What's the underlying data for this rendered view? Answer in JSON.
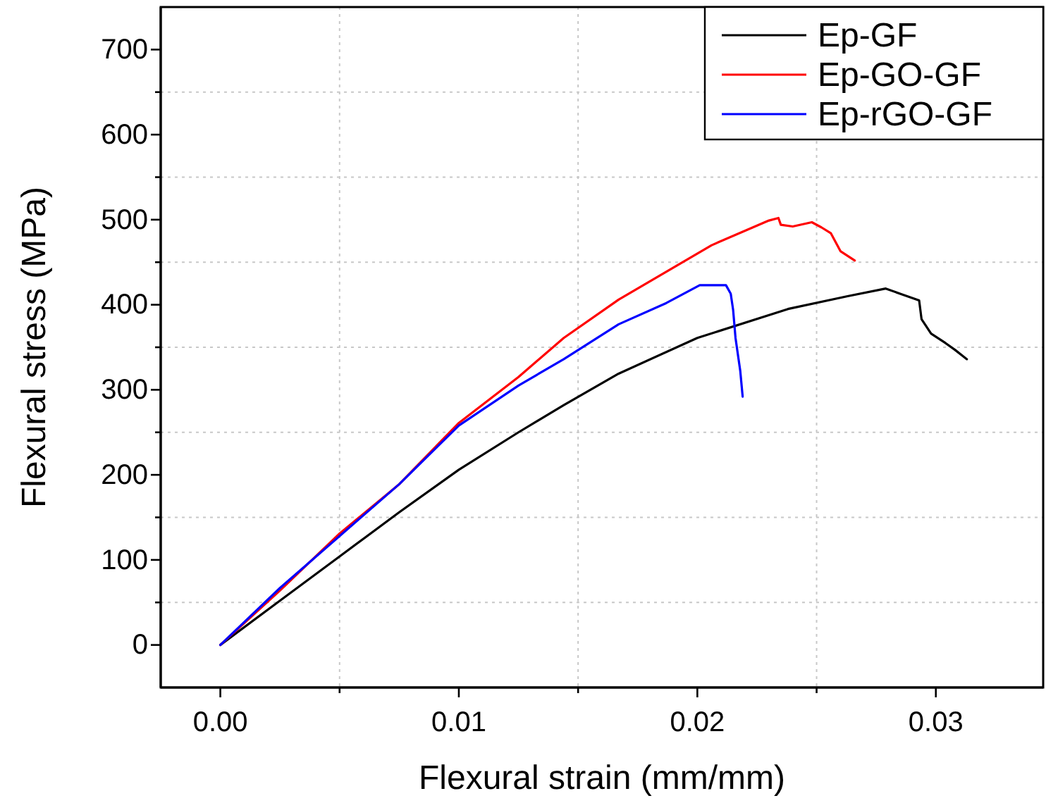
{
  "chart_data": {
    "type": "line",
    "xlabel": "Flexural strain (mm/mm)",
    "ylabel": "Flexural stress (MPa)",
    "xlim": [
      -0.0025,
      0.0345
    ],
    "ylim": [
      -50,
      750
    ],
    "xticks": [
      {
        "value": 0,
        "label": "0.00"
      },
      {
        "value": 0.005,
        "label": null
      },
      {
        "value": 0.01,
        "label": "0.01"
      },
      {
        "value": 0.015,
        "label": null
      },
      {
        "value": 0.02,
        "label": "0.02"
      },
      {
        "value": 0.025,
        "label": null
      },
      {
        "value": 0.03,
        "label": "0.03"
      }
    ],
    "yticks": [
      0,
      {
        "value": 50,
        "label": null
      },
      100,
      {
        "value": 150,
        "label": null
      },
      200,
      {
        "value": 250,
        "label": null
      },
      300,
      {
        "value": 350,
        "label": null
      },
      400,
      {
        "value": 450,
        "label": null
      },
      500,
      {
        "value": 550,
        "label": null
      },
      600,
      {
        "value": 650,
        "label": null
      },
      700
    ],
    "grid": true,
    "legend": "top right",
    "line_style": "solid",
    "marker": "none",
    "series": [
      {
        "name": "Ep-GF",
        "color": "#000000",
        "x": [
          0,
          0.0025,
          0.005,
          0.0075,
          0.01,
          0.0125,
          0.0144,
          0.0167,
          0.02,
          0.0238,
          0.0263,
          0.0279,
          0.0285,
          0.0293,
          0.0294,
          0.0298,
          0.0304,
          0.0308,
          0.0313
        ],
        "values": [
          0,
          52,
          104,
          156,
          206,
          250,
          282,
          319,
          361,
          395,
          410,
          419,
          413,
          405,
          383,
          366,
          355,
          347,
          336
        ]
      },
      {
        "name": "Ep-GO-GF",
        "color": "#ff0000",
        "x": [
          0,
          0.0025,
          0.005,
          0.0075,
          0.01,
          0.0125,
          0.0144,
          0.0167,
          0.0206,
          0.023,
          0.0234,
          0.0235,
          0.024,
          0.0248,
          0.0252,
          0.0256,
          0.026,
          0.0266
        ],
        "values": [
          0,
          64,
          131,
          189,
          261,
          315,
          361,
          406,
          470,
          499,
          502,
          494,
          492,
          497,
          491,
          484,
          463,
          452
        ]
      },
      {
        "name": "Ep-rGO-GF",
        "color": "#0000ff",
        "x": [
          0,
          0.0025,
          0.005,
          0.0075,
          0.01,
          0.0125,
          0.0144,
          0.0167,
          0.0187,
          0.0201,
          0.0212,
          0.0214,
          0.0215,
          0.0216,
          0.0218,
          0.0219
        ],
        "values": [
          0,
          67,
          128,
          189,
          258,
          305,
          336,
          377,
          402,
          423,
          423,
          413,
          394,
          361,
          322,
          292
        ]
      }
    ]
  }
}
